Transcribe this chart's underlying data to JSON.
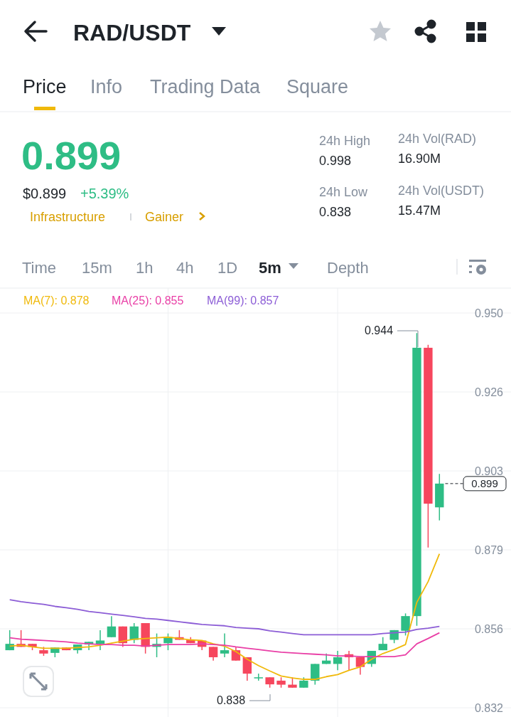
{
  "chart_data": {
    "type": "candlestick",
    "title": "RAD/USDT",
    "categories": [
      null,
      null,
      null,
      null,
      null,
      null,
      null,
      null,
      null,
      null,
      null,
      null,
      null,
      null,
      null,
      null,
      null,
      null,
      null,
      null,
      null,
      null,
      null,
      null,
      null,
      null,
      null,
      null,
      null,
      null,
      null,
      null,
      null,
      null,
      null,
      null,
      null,
      null,
      null
    ],
    "ohlc": [
      [
        0.8492,
        0.8552,
        0.8492,
        0.8511
      ],
      [
        0.8511,
        0.8552,
        0.8502,
        0.8502
      ],
      [
        0.8511,
        0.8511,
        0.8492,
        0.8502
      ],
      [
        0.8492,
        0.8502,
        0.8475,
        0.8482
      ],
      [
        0.8484,
        0.85,
        0.8471,
        0.85
      ],
      [
        0.85,
        0.85,
        0.8492,
        0.8492
      ],
      [
        0.8492,
        0.8509,
        0.8482,
        0.8509
      ],
      [
        0.8509,
        0.8517,
        0.8492,
        0.8517
      ],
      [
        0.8511,
        0.8552,
        0.8492,
        0.8521
      ],
      [
        0.8531,
        0.8594,
        0.8531,
        0.8563
      ],
      [
        0.8563,
        0.8563,
        0.8502,
        0.8513
      ],
      [
        0.8523,
        0.8573,
        0.8513,
        0.8563
      ],
      [
        0.8573,
        0.8573,
        0.8482,
        0.8502
      ],
      [
        0.8502,
        0.8542,
        0.8471,
        0.8511
      ],
      [
        0.8513,
        0.8542,
        0.8492,
        0.8531
      ],
      [
        0.8531,
        0.8552,
        0.8523,
        0.8523
      ],
      [
        0.8523,
        0.8531,
        0.8513,
        0.8513
      ],
      [
        0.8521,
        0.8521,
        0.8492,
        0.8502
      ],
      [
        0.8502,
        0.8502,
        0.8461,
        0.8471
      ],
      [
        0.8482,
        0.8542,
        0.8471,
        0.8492
      ],
      [
        0.8492,
        0.8502,
        0.8461,
        0.8461
      ],
      [
        0.8471,
        0.8471,
        0.8401,
        0.8422
      ],
      [
        0.8411,
        0.8422,
        0.8401,
        0.8411
      ],
      [
        0.8411,
        0.8411,
        0.838,
        0.839
      ],
      [
        0.8401,
        0.8411,
        0.838,
        0.8389
      ],
      [
        0.8389,
        0.8411,
        0.838,
        0.838
      ],
      [
        0.838,
        0.8411,
        0.838,
        0.8401
      ],
      [
        0.8401,
        0.8451,
        0.8389,
        0.8451
      ],
      [
        0.8451,
        0.8482,
        0.8451,
        0.8461
      ],
      [
        0.8451,
        0.849,
        0.8432,
        0.8471
      ],
      [
        0.848,
        0.849,
        0.8432,
        0.8471
      ],
      [
        0.8471,
        0.8471,
        0.8419,
        0.8442
      ],
      [
        0.8451,
        0.849,
        0.8442,
        0.849
      ],
      [
        0.8492,
        0.8531,
        0.8492,
        0.8511
      ],
      [
        0.8523,
        0.8552,
        0.8513,
        0.8552
      ],
      [
        0.855,
        0.8602,
        0.8536,
        0.8594
      ],
      [
        0.8594,
        0.944,
        0.8565,
        0.9396
      ],
      [
        0.9396,
        0.9405,
        0.8799,
        0.893
      ],
      [
        0.8919,
        0.9019,
        0.888,
        0.899
      ]
    ],
    "colors": [
      "#2ebd85",
      "#f6465d",
      "#f6465d",
      "#f6465d",
      "#2ebd85",
      "#f6465d",
      "#2ebd85",
      "#2ebd85",
      "#2ebd85",
      "#2ebd85",
      "#f6465d",
      "#2ebd85",
      "#f6465d",
      "#2ebd85",
      "#2ebd85",
      "#f6465d",
      "#f6465d",
      "#f6465d",
      "#f6465d",
      "#2ebd85",
      "#f6465d",
      "#f6465d",
      "#2ebd85",
      "#f6465d",
      "#f6465d",
      "#f6465d",
      "#2ebd85",
      "#2ebd85",
      "#2ebd85",
      "#2ebd85",
      "#f6465d",
      "#f6465d",
      "#2ebd85",
      "#2ebd85",
      "#2ebd85",
      "#2ebd85",
      "#2ebd85",
      "#f6465d",
      "#2ebd85"
    ],
    "series": [
      {
        "name": "MA(7): 0.878",
        "type": "line",
        "color": "#f0b90b",
        "values": [
          0.8504,
          0.8507,
          0.8502,
          0.8498,
          0.8498,
          0.8498,
          0.85,
          0.8502,
          0.8507,
          0.8513,
          0.8519,
          0.8525,
          0.8527,
          0.8529,
          0.8531,
          0.8527,
          0.8523,
          0.8521,
          0.8511,
          0.8504,
          0.8488,
          0.8465,
          0.8446,
          0.843,
          0.8415,
          0.8409,
          0.8405,
          0.8405,
          0.8413,
          0.8419,
          0.8432,
          0.8442,
          0.8465,
          0.8482,
          0.8494,
          0.8509,
          0.8635,
          0.8697,
          0.878
        ]
      },
      {
        "name": "MA(25): 0.855",
        "type": "line",
        "color": "#e93fa6",
        "values": [
          0.8529,
          0.8525,
          0.8523,
          0.8521,
          0.8519,
          0.8517,
          0.8513,
          0.8511,
          0.8509,
          0.8509,
          0.8507,
          0.8507,
          0.8504,
          0.8507,
          0.8509,
          0.8509,
          0.8509,
          0.8511,
          0.8509,
          0.8507,
          0.8502,
          0.8498,
          0.8494,
          0.849,
          0.8486,
          0.8484,
          0.8482,
          0.848,
          0.8478,
          0.8475,
          0.8475,
          0.8473,
          0.8473,
          0.8473,
          0.8473,
          0.8478,
          0.8511,
          0.8527,
          0.8544
        ]
      },
      {
        "name": "MA(99): 0.857",
        "type": "line",
        "color": "#8c5dd6",
        "values": [
          0.8643,
          0.8637,
          0.8633,
          0.8629,
          0.8623,
          0.8619,
          0.8614,
          0.8608,
          0.8604,
          0.86,
          0.8596,
          0.8592,
          0.8587,
          0.8585,
          0.8581,
          0.8577,
          0.8573,
          0.8569,
          0.8567,
          0.8565,
          0.856,
          0.8558,
          0.8556,
          0.855,
          0.8546,
          0.8542,
          0.8538,
          0.8538,
          0.8538,
          0.8538,
          0.8538,
          0.8538,
          0.8538,
          0.8542,
          0.8544,
          0.8546,
          0.8554,
          0.8558,
          0.8563
        ]
      }
    ],
    "ylim": [
      0.832,
      0.95
    ],
    "yticks": [
      {
        "value": 0.95,
        "label": "0.950"
      },
      {
        "value": 0.9264,
        "label": "0.926"
      },
      {
        "value": 0.9028,
        "label": "0.903"
      },
      {
        "value": 0.8792,
        "label": "0.879"
      },
      {
        "value": 0.8556,
        "label": "0.856"
      },
      {
        "value": 0.832,
        "label": "0.832"
      }
    ],
    "grid": "y",
    "legend": "top",
    "marker": "none",
    "ref_lines": [
      {
        "axis": "y",
        "value": 0.899,
        "label": "0.899",
        "line_style": "dashed",
        "color": "#1e2329"
      }
    ],
    "annotations": [
      "Price",
      "Info",
      "Trading Data",
      "Square",
      "0.899",
      "$0.899",
      "+5.39%",
      "Infrastructure",
      "Gainer",
      "24h High",
      "0.998",
      "24h Low",
      "0.838",
      "24h Vol(RAD)",
      "16.90M",
      "24h Vol(USDT)",
      "15.47M",
      "Time",
      "15m",
      "1h",
      "4h",
      "1D",
      "5m",
      "Depth",
      "0.944",
      "0.838"
    ]
  }
}
